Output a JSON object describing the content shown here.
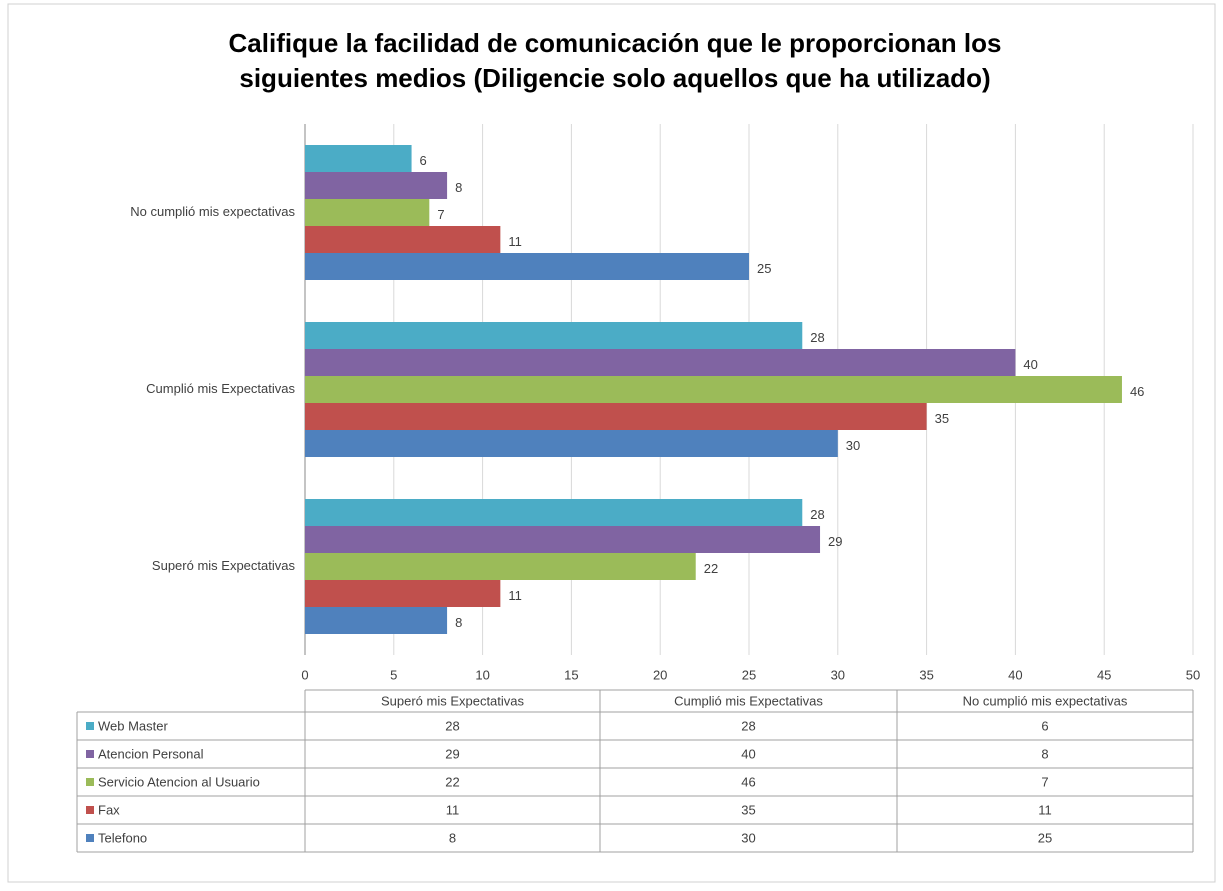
{
  "chart_data": {
    "type": "bar",
    "orientation": "horizontal",
    "title": [
      "Califique la facilidad de comunicación que le proporcionan los",
      "siguientes medios  (Diligencie solo aquellos que ha utilizado)"
    ],
    "categories": [
      "Superó mis Expectativas",
      "Cumplió mis Expectativas",
      "No cumplió mis expectativas"
    ],
    "series": [
      {
        "name": "Web Master",
        "color": "#4bacc6",
        "values": [
          28,
          28,
          6
        ]
      },
      {
        "name": "Atencion Personal",
        "color": "#8064a2",
        "values": [
          29,
          40,
          8
        ]
      },
      {
        "name": "Servicio Atencion al Usuario",
        "color": "#9bbb59",
        "values": [
          22,
          46,
          7
        ]
      },
      {
        "name": "Fax",
        "color": "#c0504d",
        "values": [
          11,
          35,
          11
        ]
      },
      {
        "name": "Telefono",
        "color": "#4f81bd",
        "values": [
          8,
          30,
          25
        ]
      }
    ],
    "xlim": [
      0,
      50
    ],
    "xticks": [
      0,
      5,
      10,
      15,
      20,
      25,
      30,
      35,
      40,
      45,
      50
    ],
    "grid": true,
    "data_table": true
  }
}
